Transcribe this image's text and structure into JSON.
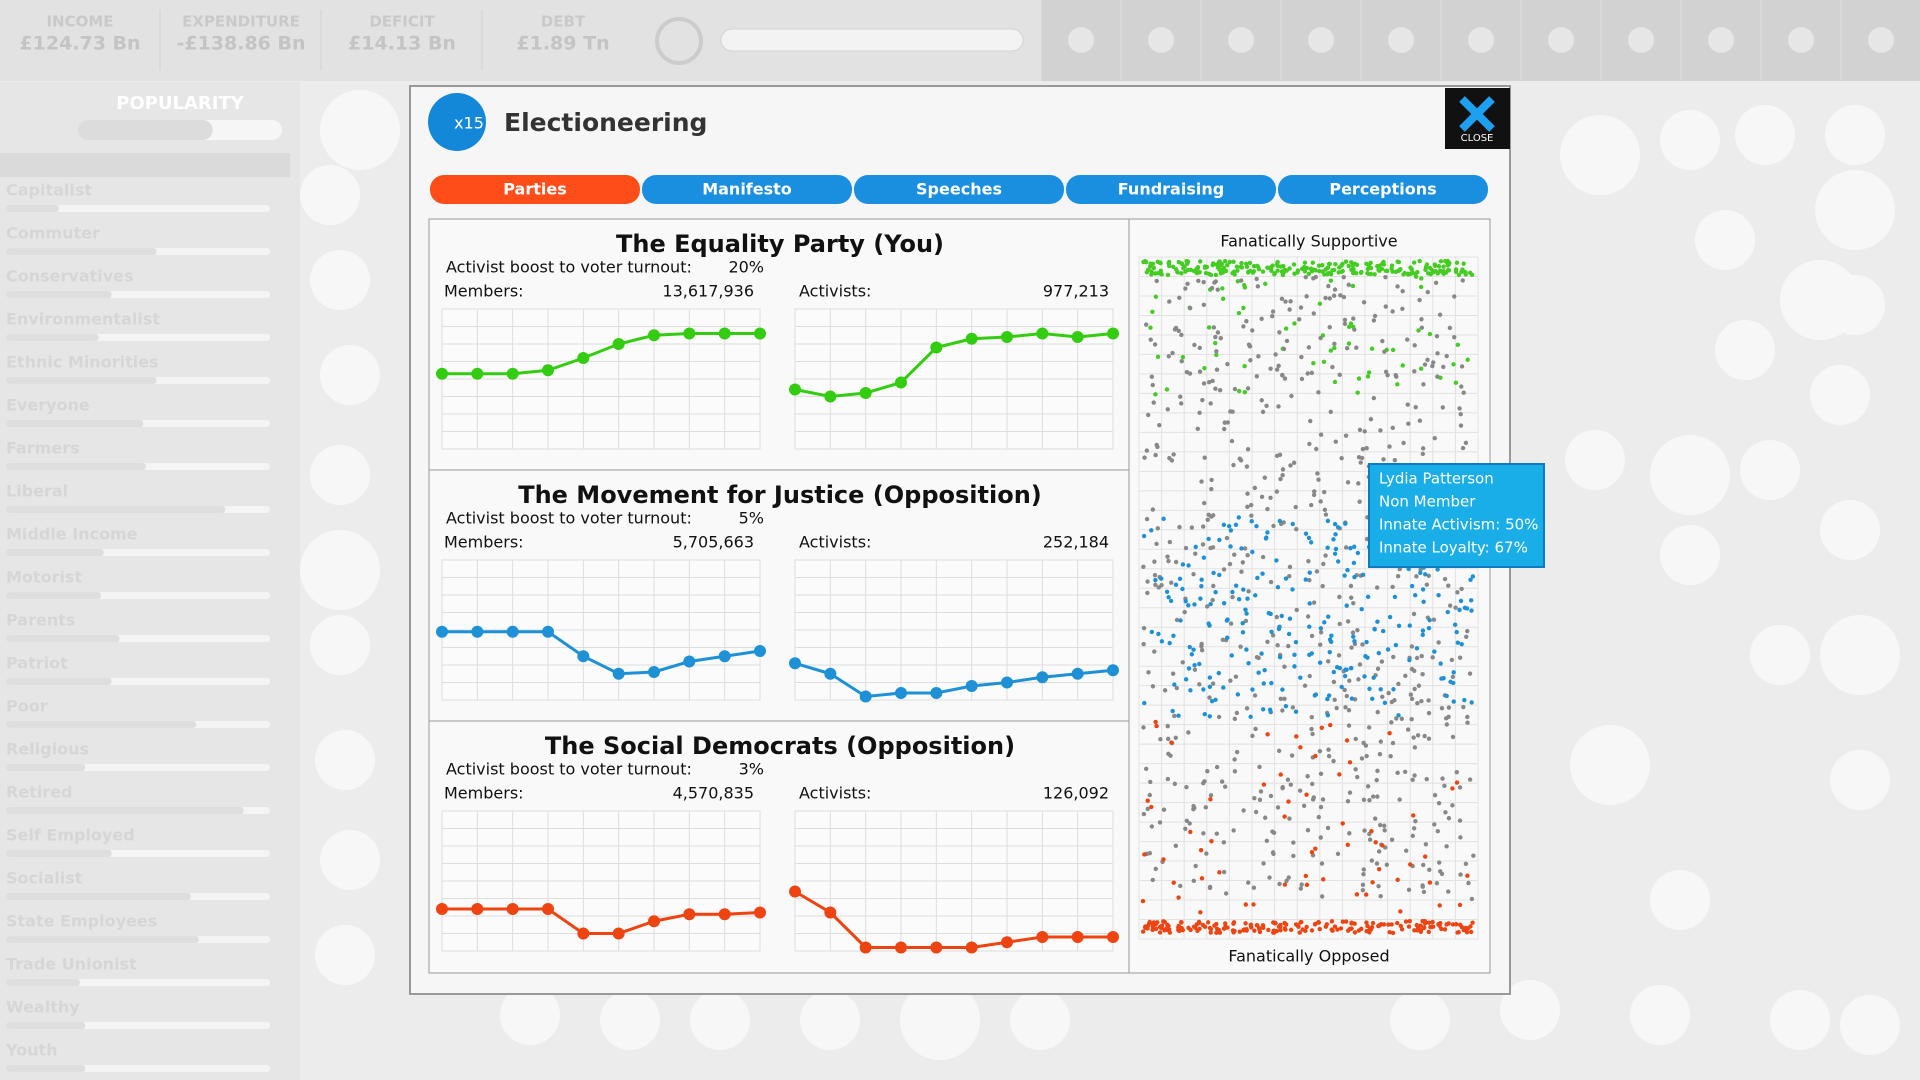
{
  "top_bar": {
    "stats": [
      {
        "label": "INCOME",
        "value": "£124.73 Bn"
      },
      {
        "label": "EXPENDITURE",
        "value": "-£138.86 Bn"
      },
      {
        "label": "DEFICIT",
        "value": "£14.13 Bn"
      },
      {
        "label": "DEBT",
        "value": "£1.89 Tn"
      }
    ]
  },
  "sidebar": {
    "title": "POPULARITY",
    "overall": 66,
    "groups": [
      {
        "name": "Capitalist",
        "value": 20
      },
      {
        "name": "Commuter",
        "value": 57
      },
      {
        "name": "Conservatives",
        "value": 40
      },
      {
        "name": "Environmentalist",
        "value": 35
      },
      {
        "name": "Ethnic Minorities",
        "value": 57
      },
      {
        "name": "Everyone",
        "value": 52
      },
      {
        "name": "Farmers",
        "value": 53
      },
      {
        "name": "Liberal",
        "value": 83
      },
      {
        "name": "Middle Income",
        "value": 37
      },
      {
        "name": "Motorist",
        "value": 36
      },
      {
        "name": "Parents",
        "value": 43
      },
      {
        "name": "Patriot",
        "value": 40
      },
      {
        "name": "Poor",
        "value": 72
      },
      {
        "name": "Religious",
        "value": 30
      },
      {
        "name": "Retired",
        "value": 90
      },
      {
        "name": "Self Employed",
        "value": 40
      },
      {
        "name": "Socialist",
        "value": 70
      },
      {
        "name": "State Employees",
        "value": 73
      },
      {
        "name": "Trade Unionist",
        "value": 28
      },
      {
        "name": "Wealthy",
        "value": 30
      },
      {
        "name": "Youth",
        "value": 30
      }
    ]
  },
  "dialog": {
    "badge": "x15",
    "title": "Electioneering",
    "close": "CLOSE",
    "tabs": [
      "Parties",
      "Manifesto",
      "Speeches",
      "Fundraising",
      "Perceptions"
    ],
    "history_ylim": [
      0,
      8
    ],
    "parties": [
      {
        "title": "The Equality Party (You)",
        "color": "#33cc11",
        "turnout_label": "Activist boost to voter turnout:",
        "turnout": "20%",
        "members_label": "Members:",
        "members": "13,617,936",
        "activists_label": "Activists:",
        "activists": "977,213",
        "members_history": [
          4.3,
          4.3,
          4.3,
          4.5,
          5.2,
          6.0,
          6.5,
          6.6,
          6.6,
          6.6
        ],
        "activists_history": [
          3.4,
          3.0,
          3.2,
          3.8,
          5.8,
          6.3,
          6.4,
          6.6,
          6.4,
          6.6
        ]
      },
      {
        "title": "The Movement for Justice (Opposition)",
        "color": "#1e90d6",
        "turnout_label": "Activist boost to voter turnout:",
        "turnout": "5%",
        "members_label": "Members:",
        "members": "5,705,663",
        "activists_label": "Activists:",
        "activists": "252,184",
        "members_history": [
          3.9,
          3.9,
          3.9,
          3.9,
          2.5,
          1.5,
          1.6,
          2.2,
          2.5,
          2.8
        ],
        "activists_history": [
          2.1,
          1.5,
          0.2,
          0.4,
          0.4,
          0.8,
          1.0,
          1.3,
          1.5,
          1.7
        ]
      },
      {
        "title": "The Social Democrats (Opposition)",
        "color": "#ee4411",
        "turnout_label": "Activist boost to voter turnout:",
        "turnout": "3%",
        "members_label": "Members:",
        "members": "4,570,835",
        "activists_label": "Activists:",
        "activists": "126,092",
        "members_history": [
          2.4,
          2.4,
          2.4,
          2.4,
          1.0,
          1.0,
          1.7,
          2.1,
          2.1,
          2.2
        ],
        "activists_history": [
          3.4,
          2.2,
          0.2,
          0.2,
          0.2,
          0.2,
          0.5,
          0.8,
          0.8,
          0.8
        ]
      }
    ],
    "voters": {
      "top_label": "Fanatically Supportive",
      "bottom_label": "Fanatically Opposed",
      "tooltip": [
        "Lydia Patterson",
        "Non Member",
        "Innate Activism: 50%",
        "Innate Loyalty: 67%"
      ]
    }
  }
}
